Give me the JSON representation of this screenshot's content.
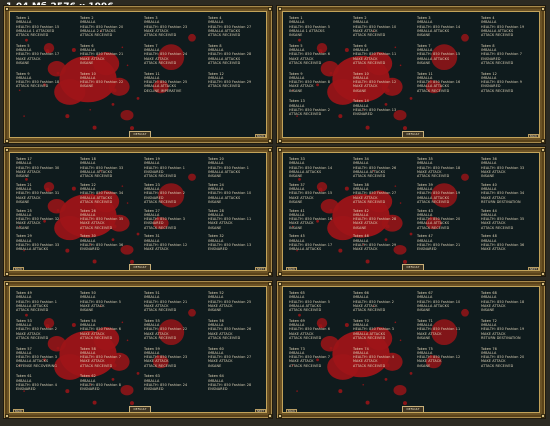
{
  "header": {
    "text": "1.04 Мб 2576 x 1996"
  },
  "colors": {
    "frame": "#6b5225",
    "screen": "#0f1b1d",
    "blood": "#9e1418",
    "text": "#dcd2b8"
  },
  "panels": [
    {
      "id": "p1",
      "center_button": "DEFAULT",
      "left_button": "",
      "right_button": "BACK",
      "entries": [
        [
          "Token 1",
          "IMBALLA",
          "HEALTH: 850 Fashion 15",
          "IMBALLA 1 ATTACKED",
          "ATTACK RECEIVED"
        ],
        [
          "Token 2",
          "IMBALLA",
          "HEALTH: 850 Fashion 20",
          "IMBALLA 2 ATTACKS",
          "ATTACK RECEIVED"
        ],
        [
          "Token 3",
          "IMBALLA",
          "HEALTH: 850 Fashion 23",
          "MAKE ATTACK",
          "ATTACK RECEIVED"
        ],
        [
          "Token 4",
          "IMBALLA",
          "HEALTH: 850 Fashion 27",
          "IMBALLA ATTACKS",
          "ATTACK RECEIVED"
        ],
        [
          "Token 5",
          "IMBALLA",
          "HEALTH: 850 Fashion 17",
          "MAKE ATTACK",
          "INSANE"
        ],
        [
          "Token 6",
          "IMBALLA",
          "HEALTH: 850 Fashion 21",
          "MAKE ATTACK",
          "INSANE"
        ],
        [
          "Token 7",
          "IMBALLA",
          "HEALTH: 850 Fashion 24",
          "MAKE ATTACK",
          "ATTACK RECEIVED"
        ],
        [
          "Token 8",
          "IMBALLA",
          "HEALTH: 850 Fashion 28",
          "IMBALLA ATTACKS",
          "ATTACK RECEIVED"
        ],
        [
          "Token 9",
          "IMBALLA",
          "HEALTH: 850 Fashion 18",
          "ATTACK RECEIVED",
          ""
        ],
        [
          "Token 10",
          "IMBALLA",
          "HEALTH: 850 Fashion 22",
          "INSANE",
          ""
        ],
        [
          "Token 11",
          "IMBALLA",
          "HEALTH: 850 Fashion 25",
          "IMBALLA ATTACKS",
          "DECLINE IMPERATIVE"
        ],
        [
          "Token 12",
          "IMBALLA",
          "HEALTH: 850 Fashion 29",
          "ATTACK RECEIVED",
          ""
        ]
      ]
    },
    {
      "id": "p2",
      "center_button": "DEFAULT",
      "left_button": "",
      "right_button": "BACK",
      "entries": [
        [
          "Token 1",
          "IMBALLA",
          "HEALTH: 850 Fashion 5",
          "IMBALLA 1 ATTACKS",
          "INSANE"
        ],
        [
          "Token 2",
          "IMBALLA",
          "HEALTH: 850 Fashion 10",
          "MAKE ATTACK",
          "ATTACK RECEIVED"
        ],
        [
          "Token 3",
          "IMBALLA",
          "HEALTH: 850 Fashion 14",
          "IMBALLA ATTACKS",
          "INSANE"
        ],
        [
          "Token 4",
          "IMBALLA",
          "HEALTH: 850 Fashion 19",
          "IMBALLA ATTACKS",
          "ATTACK RECEIVED"
        ],
        [
          "Token 5",
          "IMBALLA",
          "HEALTH: 850 Fashion 6",
          "MAKE ATTACK",
          "ATTACK RECEIVED"
        ],
        [
          "Token 6",
          "IMBALLA",
          "HEALTH: 850 Fashion 11",
          "MAKE ATTACK",
          "ATTACK RECEIVED"
        ],
        [
          "Token 7",
          "IMBALLA",
          "HEALTH: 850 Fashion 15",
          "IMBALLA ATTACKS",
          "INSANE"
        ],
        [
          "Token 8",
          "IMBALLA",
          "HEALTH: 850 Fashion 7",
          "ENSNARED",
          "ATTACK RECEIVED"
        ],
        [
          "Token 9",
          "IMBALLA",
          "HEALTH: 850 Fashion 8",
          "MAKE ATTACK",
          "INSANE"
        ],
        [
          "Token 10",
          "IMBALLA",
          "HEALTH: 850 Fashion 12",
          "MAKE ATTACK",
          "INSANE"
        ],
        [
          "Token 11",
          "IMBALLA",
          "HEALTH: 850 Fashion 16",
          "IMBALLA ATTACKS",
          "ATTACK RECEIVED"
        ],
        [
          "Token 12",
          "IMBALLA",
          "HEALTH: 850 Fashion 9",
          "ENSNARED",
          "ATTACK RECEIVED"
        ],
        [
          "Token 13",
          "IMBALLA",
          "HEALTH: 850 Fashion 2",
          "ATTACK RECEIVED",
          ""
        ],
        [
          "Token 14",
          "IMBALLA",
          "HEALTH: 850 Fashion 13",
          "ENSNARED",
          ""
        ]
      ]
    },
    {
      "id": "p3",
      "center_button": "DEFAULT",
      "left_button": "BACK",
      "right_button": "NEXT",
      "entries": [
        [
          "Token 17",
          "IMBALLA",
          "HEALTH: 850 Fashion 30",
          "MAKE ATTACK",
          "INSANE"
        ],
        [
          "Token 18",
          "IMBALLA",
          "HEALTH: 850 Fashion 33",
          "IMBALLA ATTACKS",
          "ATTACK RECEIVED"
        ],
        [
          "Token 19",
          "IMBALLA",
          "HEALTH: 850 Fashion 1",
          "ENSNARED",
          "ATTACK RECEIVED"
        ],
        [
          "Token 20",
          "IMBALLA",
          "HEALTH: 850 Fashion 1",
          "IMBALLA ATTACKS",
          "INSANE"
        ],
        [
          "Token 21",
          "IMBALLA",
          "HEALTH: 850 Fashion 31",
          "MAKE ATTACK",
          "INSANE"
        ],
        [
          "Token 22",
          "IMBALLA",
          "HEALTH: 850 Fashion 34",
          "IMBALLA ATTACKS",
          "ATTACK RECEIVED"
        ],
        [
          "Token 23",
          "IMBALLA",
          "HEALTH: 850 Fashion 2",
          "ENSNARED",
          "ATTACK RECEIVED"
        ],
        [
          "Token 24",
          "IMBALLA",
          "HEALTH: 850 Fashion 10",
          "IMBALLA ATTACKS",
          "INSANE"
        ],
        [
          "Token 25",
          "IMBALLA",
          "HEALTH: 850 Fashion 32",
          "MAKE ATTACK",
          "INSANE"
        ],
        [
          "Token 26",
          "IMBALLA",
          "HEALTH: 850 Fashion 35",
          "MAKE ATTACK",
          "ATTACK RECEIVED"
        ],
        [
          "Token 27",
          "IMBALLA",
          "HEALTH: 850 Fashion 3",
          "ENSNARED",
          "ATTACK RECEIVED"
        ],
        [
          "Token 28",
          "IMBALLA",
          "HEALTH: 850 Fashion 11",
          "MAKE ATTACK",
          "INSANE"
        ],
        [
          "Token 29",
          "IMBALLA",
          "HEALTH: 850 Fashion 33",
          "IMBALLA ATTACKS",
          ""
        ],
        [
          "Token 30",
          "IMBALLA",
          "HEALTH: 850 Fashion 36",
          "ENSNARED",
          ""
        ],
        [
          "Token 31",
          "IMBALLA",
          "HEALTH: 850 Fashion 12",
          "MAKE ATTACK",
          ""
        ],
        [
          "Token 32",
          "IMBALLA",
          "HEALTH: 850 Fashion 13",
          "ENSNARED",
          ""
        ]
      ]
    },
    {
      "id": "p4",
      "center_button": "DEFAULT",
      "left_button": "BACK",
      "right_button": "NEXT",
      "entries": [
        [
          "Token 33",
          "IMBALLA",
          "HEALTH: 850 Fashion 14",
          "IMBALLA ATTACKS",
          "INSANE"
        ],
        [
          "Token 34",
          "IMBALLA",
          "HEALTH: 850 Fashion 26",
          "IMBALLA ATTACKS",
          "ATTACK RECEIVED"
        ],
        [
          "Token 35",
          "IMBALLA",
          "HEALTH: 850 Fashion 18",
          "MAKE ATTACK",
          "ATTACK RECEIVED"
        ],
        [
          "Token 36",
          "IMBALLA",
          "HEALTH: 850 Fashion 33",
          "MAKE ATTACK",
          "INSANE"
        ],
        [
          "Token 37",
          "IMBALLA",
          "HEALTH: 850 Fashion 15",
          "MAKE ATTACK",
          "INSANE"
        ],
        [
          "Token 38",
          "IMBALLA",
          "HEALTH: 850 Fashion 27",
          "MAKE ATTACK",
          "ATTACK RECEIVED"
        ],
        [
          "Token 39",
          "IMBALLA",
          "HEALTH: 850 Fashion 19",
          "IMBALLA ATTACKS",
          "ATTACK RECEIVED"
        ],
        [
          "Token 40",
          "IMBALLA",
          "HEALTH: 850 Fashion 34",
          "MAKE ATTACK",
          "RETURN DESTINATION"
        ],
        [
          "Token 41",
          "IMBALLA",
          "HEALTH: 850 Fashion 16",
          "MAKE ATTACK",
          "INSANE"
        ],
        [
          "Token 42",
          "IMBALLA",
          "HEALTH: 850 Fashion 28",
          "MAKE ATTACK",
          "INSANE"
        ],
        [
          "Token 43",
          "IMBALLA",
          "HEALTH: 850 Fashion 20",
          "IMBALLA ATTACKS",
          "ATTACK RECEIVED"
        ],
        [
          "Token 44",
          "IMBALLA",
          "HEALTH: 850 Fashion 35",
          "MAKE ATTACK",
          "ATTACK RECEIVED"
        ],
        [
          "Token 45",
          "IMBALLA",
          "HEALTH: 850 Fashion 17",
          "IMBALLA ATTACKS",
          ""
        ],
        [
          "Token 46",
          "IMBALLA",
          "HEALTH: 850 Fashion 29",
          "MAKE ATTACK",
          ""
        ],
        [
          "Token 47",
          "IMBALLA",
          "HEALTH: 850 Fashion 21",
          "ENSNARED",
          ""
        ],
        [
          "Token 48",
          "IMBALLA",
          "HEALTH: 850 Fashion 36",
          "MAKE ATTACK",
          ""
        ]
      ]
    },
    {
      "id": "p5",
      "center_button": "DEFAULT",
      "left_button": "BACK",
      "right_button": "NEXT",
      "entries": [
        [
          "Token 49",
          "IMBALLA",
          "HEALTH: 850 Fashion 1",
          "IMBALLA ATTACKS",
          "ATTACK RECEIVED"
        ],
        [
          "Token 50",
          "IMBALLA",
          "HEALTH: 850 Fashion 5",
          "MAKE ATTACK",
          "INSANE"
        ],
        [
          "Token 51",
          "IMBALLA",
          "HEALTH: 850 Fashion 21",
          "MAKE ATTACK",
          "ATTACK RECEIVED"
        ],
        [
          "Token 52",
          "IMBALLA",
          "HEALTH: 850 Fashion 25",
          "MAKE ATTACK",
          "INSANE"
        ],
        [
          "Token 53",
          "IMBALLA",
          "HEALTH: 850 Fashion 2",
          "MAKE ATTACK",
          "ATTACK RECEIVED"
        ],
        [
          "Token 54",
          "IMBALLA",
          "HEALTH: 850 Fashion 6",
          "MAKE ATTACK",
          "ATTACK RECEIVED"
        ],
        [
          "Token 55",
          "IMBALLA",
          "HEALTH: 850 Fashion 22",
          "MAKE ATTACK",
          "ATTACK RECEIVED"
        ],
        [
          "Token 56",
          "IMBALLA",
          "HEALTH: 850 Fashion 26",
          "MAKE ATTACK",
          "ATTACK RECEIVED"
        ],
        [
          "Token 57",
          "IMBALLA",
          "HEALTH: 850 Fashion 3",
          "IMBALLA ATTACKS",
          "DEFENSE RECOVERING"
        ],
        [
          "Token 58",
          "IMBALLA",
          "HEALTH: 850 Fashion 7",
          "MAKE ATTACK",
          "ATTACK RECEIVED"
        ],
        [
          "Token 59",
          "IMBALLA",
          "HEALTH: 850 Fashion 23",
          "MAKE ATTACK",
          "ATTACK RECEIVED"
        ],
        [
          "Token 60",
          "IMBALLA",
          "HEALTH: 850 Fashion 27",
          "MAKE ATTACK",
          "INSANE"
        ],
        [
          "Token 61",
          "IMBALLA",
          "HEALTH: 850 Fashion 4",
          "ENSNARED",
          ""
        ],
        [
          "Token 62",
          "IMBALLA",
          "HEALTH: 850 Fashion 8",
          "ENSNARED",
          ""
        ],
        [
          "Token 63",
          "IMBALLA",
          "HEALTH: 850 Fashion 24",
          "ENSNARED",
          ""
        ],
        [
          "Token 64",
          "IMBALLA",
          "HEALTH: 850 Fashion 28",
          "ENSNARED",
          ""
        ]
      ]
    },
    {
      "id": "p6",
      "center_button": "DEFAULT",
      "left_button": "BACK",
      "right_button": "",
      "entries": [
        [
          "Token 65",
          "IMBALLA",
          "HEALTH: 850 Fashion 5",
          "IMBALLA ATTACKS",
          "ATTACK RECEIVED"
        ],
        [
          "Token 66",
          "IMBALLA",
          "HEALTH: 850 Fashion 2",
          "MAKE ATTACK",
          "ATTACK RECEIVED"
        ],
        [
          "Token 67",
          "IMBALLA",
          "HEALTH: 850 Fashion 10",
          "IMBALLA ATTACKS",
          "INSANE"
        ],
        [
          "Token 68",
          "IMBALLA",
          "HEALTH: 850 Fashion 18",
          "MAKE ATTACK",
          "INSANE"
        ],
        [
          "Token 69",
          "IMBALLA",
          "HEALTH: 850 Fashion 6",
          "MAKE ATTACK",
          "ATTACK RECEIVED"
        ],
        [
          "Token 70",
          "IMBALLA",
          "HEALTH: 850 Fashion 3",
          "IMBALLA ATTACKS",
          "ATTACK RECEIVED"
        ],
        [
          "Token 71",
          "IMBALLA",
          "HEALTH: 850 Fashion 11",
          "MAKE ATTACK",
          "INSANE"
        ],
        [
          "Token 72",
          "IMBALLA",
          "HEALTH: 850 Fashion 19",
          "MAKE ATTACK",
          "RETURN DESTINATION"
        ],
        [
          "Token 73",
          "IMBALLA",
          "HEALTH: 850 Fashion 7",
          "MAKE ATTACK",
          "ATTACK RECEIVED"
        ],
        [
          "Token 74",
          "IMBALLA",
          "HEALTH: 850 Fashion 4",
          "MAKE ATTACK",
          "ATTACK RECEIVED"
        ],
        [
          "Token 75",
          "IMBALLA",
          "HEALTH: 850 Fashion 12",
          "MAKE ATTACK",
          "INSANE"
        ],
        [
          "Token 76",
          "IMBALLA",
          "HEALTH: 850 Fashion 20",
          "MAKE ATTACK",
          "ATTACK RECEIVED"
        ]
      ]
    }
  ]
}
